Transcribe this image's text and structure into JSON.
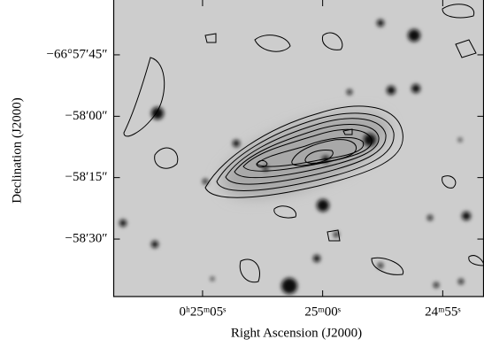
{
  "chart_data": {
    "type": "image",
    "x_label": "Right Ascension (J2000)",
    "y_label": "Declination (J2000)",
    "xlim": [
      1508.7,
      1493.3
    ],
    "xticks": [
      {
        "value": 1505,
        "label": "0ʰ25ᵐ05ˢ"
      },
      {
        "value": 1500,
        "label": "25ᵐ00ˢ"
      },
      {
        "value": 1495,
        "label": "24ᵐ55ˢ"
      }
    ],
    "ylim": [
      -66.9789,
      -66.95878
    ],
    "yticks": [
      {
        "value": -66.9625,
        "label": "−66°57′45″"
      },
      {
        "value": -66.96667,
        "label": "−58′00″"
      },
      {
        "value": -66.97083,
        "label": "−58′15″"
      },
      {
        "value": -66.975,
        "label": "−58′30″"
      }
    ]
  }
}
